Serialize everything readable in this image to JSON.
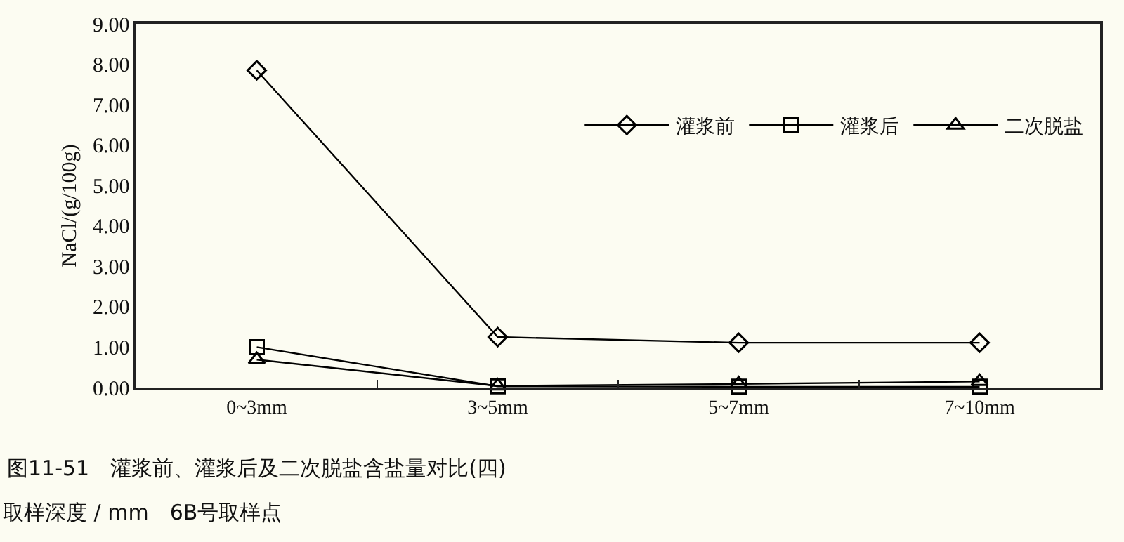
{
  "chart_data": {
    "type": "line",
    "title": "图11-51　灌浆前、灌浆后及二次脱盐含盐量对比(四)",
    "ylabel": "NaCl/(g/100g)",
    "categories": [
      "0~3mm",
      "3~5mm",
      "5~7mm",
      "7~10mm"
    ],
    "series": [
      {
        "name": "灌浆前",
        "color": "#000000",
        "marker": "diamond",
        "values": [
          7.85,
          1.25,
          1.11,
          1.11
        ]
      },
      {
        "name": "灌浆后",
        "color": "#000000",
        "marker": "square",
        "values": [
          1.0,
          0.03,
          0.02,
          0.02
        ]
      },
      {
        "name": "二次脱盐",
        "color": "#000000",
        "marker": "triangle",
        "values": [
          0.69,
          0.04,
          0.09,
          0.15
        ]
      }
    ],
    "ylim": [
      0,
      9
    ],
    "yticks": [
      {
        "value": 0,
        "label": "0.00"
      },
      {
        "value": 1,
        "label": "1.00"
      },
      {
        "value": 2,
        "label": "2.00"
      },
      {
        "value": 3,
        "label": "3.00"
      },
      {
        "value": 4,
        "label": "4.00"
      },
      {
        "value": 5,
        "label": "5.00"
      },
      {
        "value": 6,
        "label": "6.00"
      },
      {
        "value": 7,
        "label": "7.00"
      },
      {
        "value": 8,
        "label": "8.00"
      },
      {
        "value": 9,
        "label": "9.00"
      }
    ],
    "grid": false,
    "legend": "top right",
    "line_style": "solid",
    "annotations": [
      "取样深度 / mm　6B号取样点"
    ]
  }
}
